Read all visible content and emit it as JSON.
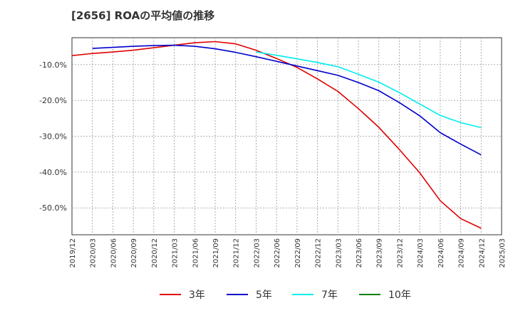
{
  "chart_data": {
    "type": "line",
    "title": "[2656]  ROAの平均値の推移",
    "xlabel": "",
    "ylabel": "",
    "ylim": [
      -57.5,
      -2.5
    ],
    "yticks": [
      -10,
      -20,
      -30,
      -40,
      -50
    ],
    "ytick_labels": [
      "-10.0%",
      "-20.0%",
      "-30.0%",
      "-40.0%",
      "-50.0%"
    ],
    "categories": [
      "2019/12",
      "2020/03",
      "2020/06",
      "2020/09",
      "2020/12",
      "2021/03",
      "2021/06",
      "2021/09",
      "2021/12",
      "2022/03",
      "2022/06",
      "2022/09",
      "2022/12",
      "2023/03",
      "2023/06",
      "2023/09",
      "2023/12",
      "2024/03",
      "2024/06",
      "2024/09",
      "2024/12",
      "2025/03"
    ],
    "grid": true,
    "legend_position": "bottom",
    "series": [
      {
        "name": "3年",
        "color": "#e00000",
        "values": [
          -7.5,
          -6.9,
          -6.5,
          -6.0,
          -5.3,
          -4.6,
          -3.9,
          -3.6,
          -4.2,
          -6.0,
          -8.3,
          -10.8,
          -14.0,
          -17.5,
          -22.3,
          -27.5,
          -33.7,
          -40.2,
          -48.0,
          -53.0,
          -55.7,
          null
        ]
      },
      {
        "name": "5年",
        "color": "#0000cc",
        "values": [
          null,
          -5.5,
          -5.2,
          -4.9,
          -4.7,
          -4.6,
          -4.9,
          -5.6,
          -6.6,
          -7.8,
          -9.1,
          -10.4,
          -11.7,
          -13.0,
          -15.0,
          -17.3,
          -20.6,
          -24.3,
          -29.0,
          -32.2,
          -35.2,
          null
        ]
      },
      {
        "name": "7年",
        "color": "#00eeee",
        "values": [
          null,
          null,
          null,
          null,
          null,
          null,
          null,
          null,
          null,
          -6.5,
          -7.4,
          -8.4,
          -9.4,
          -10.6,
          -12.7,
          -14.9,
          -17.8,
          -21.0,
          -24.2,
          -26.2,
          -27.6,
          null
        ]
      },
      {
        "name": "10年",
        "color": "#008000",
        "values": [
          null,
          null,
          null,
          null,
          null,
          null,
          null,
          null,
          null,
          null,
          null,
          null,
          null,
          null,
          null,
          null,
          null,
          null,
          null,
          null,
          null,
          null
        ]
      }
    ]
  }
}
